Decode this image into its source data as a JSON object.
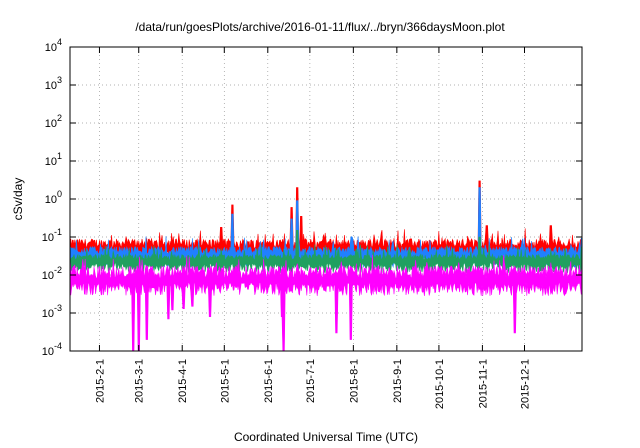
{
  "chart_data": {
    "type": "line",
    "title": "/data/run/goesPlots/archive/2016-01-11/flux/../bryn/366daysMoon.plot",
    "xlabel": "Coordinated Universal Time (UTC)",
    "ylabel": "cSv/day",
    "y_scale": "log",
    "ylim": [
      0.0001,
      10000
    ],
    "y_tick_labels": [
      {
        "base": "10",
        "exp": "-4"
      },
      {
        "base": "10",
        "exp": "-3"
      },
      {
        "base": "10",
        "exp": "-2"
      },
      {
        "base": "10",
        "exp": "-1"
      },
      {
        "base": "10",
        "exp": "0"
      },
      {
        "base": "10",
        "exp": "1"
      },
      {
        "base": "10",
        "exp": "2"
      },
      {
        "base": "10",
        "exp": "3"
      },
      {
        "base": "10",
        "exp": "4"
      }
    ],
    "xlim": [
      "2015-01-11",
      "2016-01-11"
    ],
    "x_ticks": [
      "2015-2-1",
      "2015-3-1",
      "2015-4-1",
      "2015-5-1",
      "2015-6-1",
      "2015-7-1",
      "2015-8-1",
      "2015-9-1",
      "2015-10-1",
      "2015-11-1",
      "2015-12-1"
    ],
    "x_tick_dates": [
      "2015-02-01",
      "2015-03-01",
      "2015-04-01",
      "2015-05-01",
      "2015-06-01",
      "2015-07-01",
      "2015-08-01",
      "2015-09-01",
      "2015-10-01",
      "2015-11-01",
      "2015-12-01"
    ],
    "grid": true,
    "series_colors": [
      "#ff0000",
      "#2080ff",
      "#20a060",
      "#ff00ff"
    ],
    "series": [
      {
        "color": "#ff0000",
        "baseline": 0.05,
        "spikes": [
          [
            "2015-05-07",
            0.7
          ],
          [
            "2015-06-18",
            0.6
          ],
          [
            "2015-06-22",
            2.0
          ],
          [
            "2015-06-25",
            0.35
          ],
          [
            "2015-04-29",
            0.18
          ],
          [
            "2015-10-30",
            3.0
          ],
          [
            "2015-11-04",
            0.2
          ],
          [
            "2015-12-20",
            0.2
          ]
        ]
      },
      {
        "color": "#2080ff",
        "baseline": 0.035,
        "spikes": [
          [
            "2015-05-07",
            0.4
          ],
          [
            "2015-06-18",
            0.3
          ],
          [
            "2015-06-22",
            0.9
          ],
          [
            "2015-10-30",
            2.0
          ]
        ]
      },
      {
        "color": "#20a060",
        "baseline": 0.025,
        "spikes": [
          [
            "2015-06-22",
            0.15
          ],
          [
            "2015-10-30",
            0.1
          ]
        ]
      },
      {
        "color": "#ff00ff",
        "baseline": 0.008,
        "dips": [
          [
            "2015-02-25",
            0.0001
          ],
          [
            "2015-03-01",
            0.0001
          ],
          [
            "2015-03-07",
            0.0002
          ],
          [
            "2015-03-22",
            0.0007
          ],
          [
            "2015-03-25",
            0.0012
          ],
          [
            "2015-04-02",
            0.0013
          ],
          [
            "2015-04-08",
            0.0015
          ],
          [
            "2015-04-21",
            0.0008
          ],
          [
            "2015-06-11",
            0.0008
          ],
          [
            "2015-06-12",
            0.0001
          ],
          [
            "2015-07-20",
            0.0003
          ],
          [
            "2015-07-30",
            0.0002
          ],
          [
            "2015-11-24",
            0.0003
          ]
        ]
      }
    ]
  }
}
